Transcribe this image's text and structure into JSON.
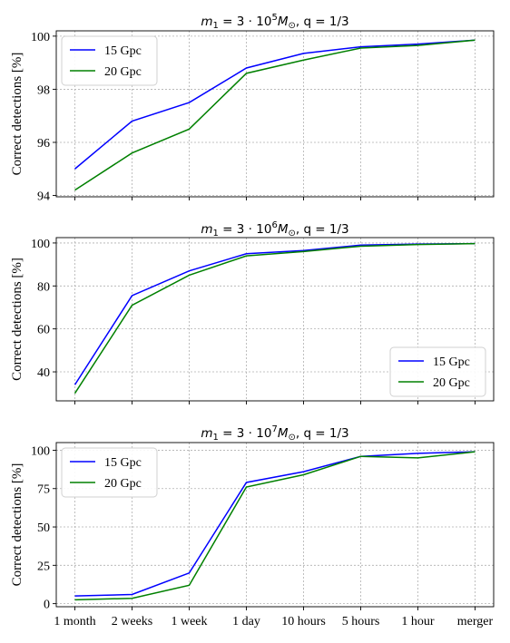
{
  "chart_data": [
    {
      "type": "line",
      "title": {
        "m_sym": "m",
        "m_sub": "1",
        "mantissa": " = 3 · 10",
        "exp": "5",
        "mass_sym": "M",
        "mass_sub": "⊙",
        "q_part": ",  q = 1/3"
      },
      "ylabel": "Correct detections [%]",
      "ylim": [
        93.95,
        100.2
      ],
      "yticks": [
        "94",
        "96",
        "98",
        "100"
      ],
      "ytick_values": [
        94,
        96,
        98,
        100
      ],
      "legend_position": "upper-left",
      "x": [
        "1 month",
        "2 weeks",
        "1 week",
        "1 day",
        "10 hours",
        "5 hours",
        "1 hour",
        "merger"
      ],
      "series": [
        {
          "name": "15 Gpc",
          "color": "#0000ff",
          "values": [
            95.0,
            96.8,
            97.5,
            98.8,
            99.35,
            99.6,
            99.7,
            99.85
          ]
        },
        {
          "name": "20 Gpc",
          "color": "#008000",
          "values": [
            94.2,
            95.6,
            96.5,
            98.6,
            99.1,
            99.55,
            99.65,
            99.85
          ]
        }
      ]
    },
    {
      "type": "line",
      "title": {
        "m_sym": "m",
        "m_sub": "1",
        "mantissa": " = 3 · 10",
        "exp": "6",
        "mass_sym": "M",
        "mass_sub": "⊙",
        "q_part": ",  q = 1/3"
      },
      "ylabel": "Correct detections [%]",
      "ylim": [
        26.5,
        102.5
      ],
      "yticks": [
        "40",
        "60",
        "80",
        "100"
      ],
      "ytick_values": [
        40,
        60,
        80,
        100
      ],
      "legend_position": "lower-right",
      "x": [
        "1 month",
        "2 weeks",
        "1 week",
        "1 day",
        "10 hours",
        "5 hours",
        "1 hour",
        "merger"
      ],
      "series": [
        {
          "name": "15 Gpc",
          "color": "#0000ff",
          "values": [
            34,
            75.5,
            87,
            95,
            96.5,
            99,
            99.5,
            99.7
          ]
        },
        {
          "name": "20 Gpc",
          "color": "#008000",
          "values": [
            30,
            71,
            85,
            94,
            96,
            98.5,
            99.3,
            99.7
          ]
        }
      ]
    },
    {
      "type": "line",
      "title": {
        "m_sym": "m",
        "m_sub": "1",
        "mantissa": " = 3 · 10",
        "exp": "7",
        "mass_sym": "M",
        "mass_sub": "⊙",
        "q_part": ",  q = 1/3"
      },
      "ylabel": "Correct detections [%]",
      "ylim": [
        -2,
        105
      ],
      "yticks": [
        "0",
        "25",
        "50",
        "75",
        "100"
      ],
      "ytick_values": [
        0,
        25,
        50,
        75,
        100
      ],
      "legend_position": "upper-left",
      "x": [
        "1 month",
        "2 weeks",
        "1 week",
        "1 day",
        "10 hours",
        "5 hours",
        "1 hour",
        "merger"
      ],
      "series": [
        {
          "name": "15 Gpc",
          "color": "#0000ff",
          "values": [
            5,
            6,
            20,
            79,
            86,
            96,
            98,
            99
          ]
        },
        {
          "name": "20 Gpc",
          "color": "#008000",
          "values": [
            2.5,
            3.5,
            12,
            76,
            84,
            96,
            95,
            99
          ]
        }
      ]
    }
  ]
}
